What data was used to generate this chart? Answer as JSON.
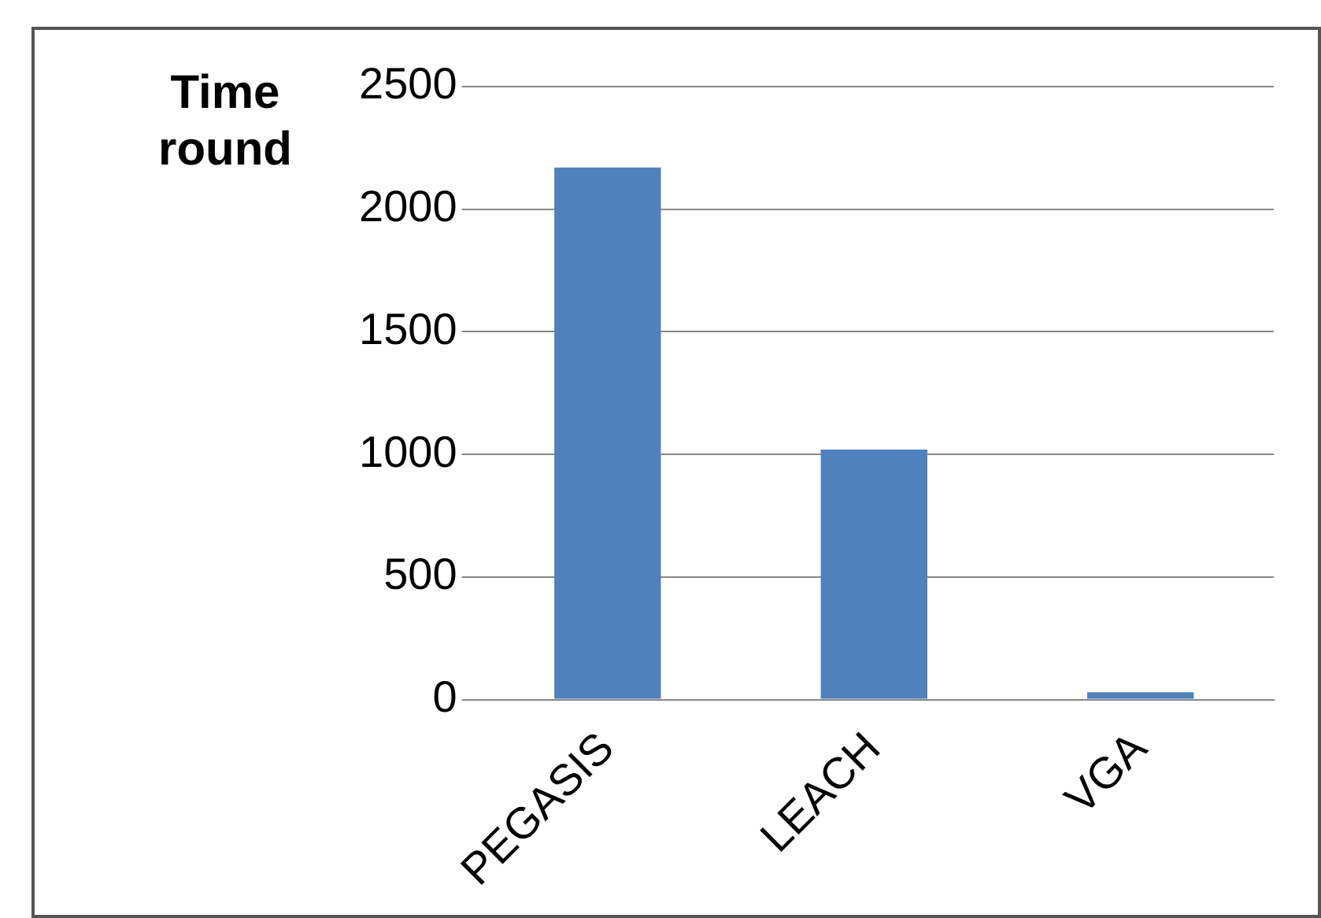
{
  "chart_data": {
    "type": "bar",
    "ylabel": "Time\nround",
    "categories": [
      "PEGASIS",
      "LEACH",
      "VGA"
    ],
    "values": [
      2170,
      1020,
      30
    ],
    "color": "#4f81bd",
    "ylim": [
      0,
      2500
    ],
    "yticks": [
      0,
      500,
      1000,
      1500,
      2000,
      2500
    ],
    "grid": "y",
    "legend": false
  }
}
